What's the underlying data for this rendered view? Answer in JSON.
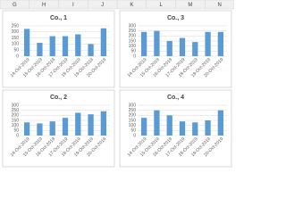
{
  "spreadsheet": {
    "columns": [
      "G",
      "H",
      "I",
      "J",
      "K",
      "L",
      "M",
      "N"
    ]
  },
  "chart_data": [
    {
      "type": "bar",
      "title": "Co., 1",
      "color": "#5b9bd5",
      "grid": true,
      "categories": [
        "14-Oct-2019",
        "15-Oct-2019",
        "16-Oct-2019",
        "17-Oct-2019",
        "18-Oct-2019",
        "19-Oct-2019",
        "20-Oct-2019"
      ],
      "values": [
        225,
        110,
        165,
        165,
        180,
        100,
        230
      ],
      "ylim": [
        0,
        250
      ],
      "yticks": [
        0,
        50,
        100,
        150,
        200,
        250
      ]
    },
    {
      "type": "bar",
      "title": "Co., 3",
      "color": "#5b9bd5",
      "grid": true,
      "categories": [
        "14-Oct-2019",
        "15-Oct-2019",
        "16-Oct-2019",
        "17-Oct-2019",
        "18-Oct-2019",
        "19-Oct-2019",
        "20-Oct-2019"
      ],
      "values": [
        240,
        250,
        150,
        180,
        140,
        240,
        240
      ],
      "ylim": [
        0,
        300
      ],
      "yticks": [
        0,
        50,
        100,
        150,
        200,
        250,
        300
      ]
    },
    {
      "type": "bar",
      "title": "Co., 2",
      "color": "#5b9bd5",
      "grid": true,
      "categories": [
        "14-Oct-2019",
        "15-Oct-2019",
        "16-Oct-2019",
        "17-Oct-2019",
        "18-Oct-2019",
        "19-Oct-2019",
        "20-Oct-2019"
      ],
      "values": [
        130,
        120,
        140,
        175,
        225,
        210,
        240
      ],
      "ylim": [
        0,
        300
      ],
      "yticks": [
        0,
        50,
        100,
        150,
        200,
        250,
        300
      ]
    },
    {
      "type": "bar",
      "title": "Co., 4",
      "color": "#5b9bd5",
      "grid": true,
      "categories": [
        "14-Oct-2019",
        "15-Oct-2019",
        "16-Oct-2019",
        "17-Oct-2019",
        "18-Oct-2019",
        "19-Oct-2019",
        "20-Oct-2019"
      ],
      "values": [
        175,
        250,
        200,
        140,
        130,
        150,
        250
      ],
      "ylim": [
        0,
        300
      ],
      "yticks": [
        0,
        50,
        100,
        150,
        200,
        250,
        300
      ]
    }
  ]
}
